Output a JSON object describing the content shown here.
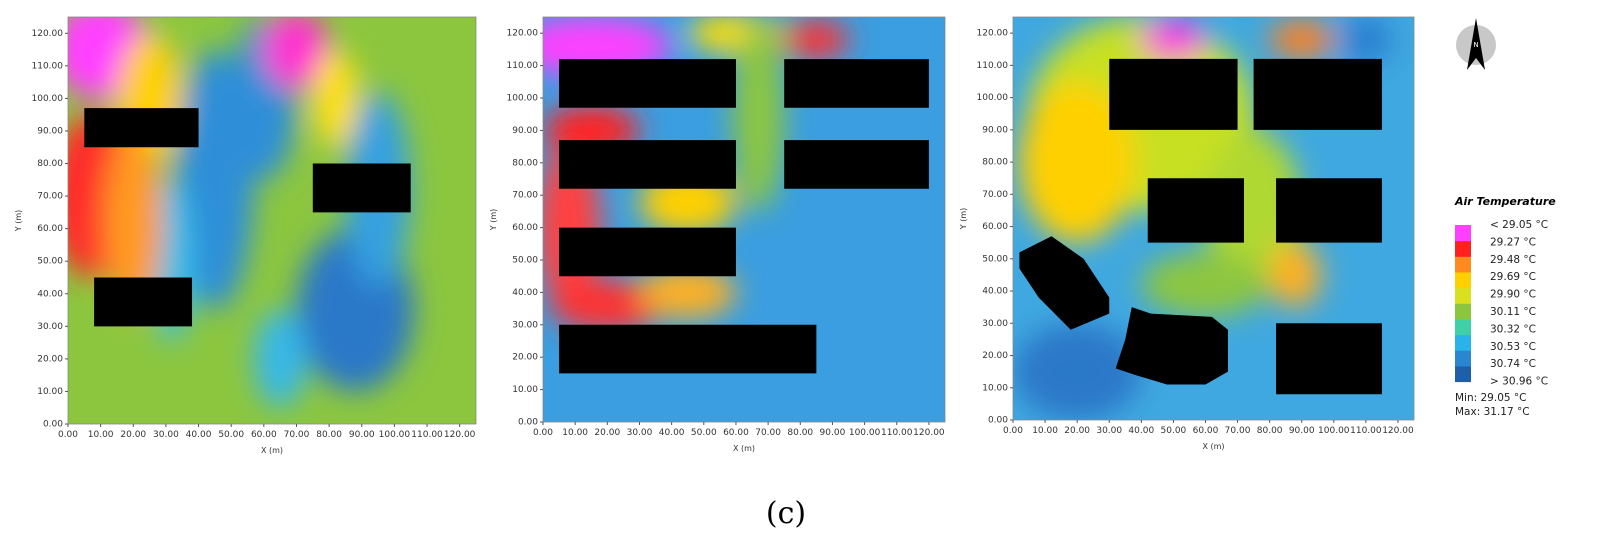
{
  "chart_data": [
    {
      "type": "heatmap",
      "x_label": "X (m)",
      "y_label": "Y (m)",
      "xlim": [
        0,
        125
      ],
      "ylim": [
        0,
        125
      ],
      "xticks": [
        {
          "value": 0,
          "label": "0.00"
        },
        {
          "value": 10,
          "label": "10.00"
        },
        {
          "value": 20,
          "label": "20.00"
        },
        {
          "value": 30,
          "label": "30.00"
        },
        {
          "value": 40,
          "label": "40.00"
        },
        {
          "value": 50,
          "label": "50.00"
        },
        {
          "value": 60,
          "label": "60.00"
        },
        {
          "value": 70,
          "label": "70.00"
        },
        {
          "value": 80,
          "label": "80.00"
        },
        {
          "value": 90,
          "label": "90.00"
        },
        {
          "value": 100,
          "label": "100.00"
        },
        {
          "value": 110,
          "label": "110.00"
        },
        {
          "value": 120,
          "label": "120.00"
        }
      ],
      "yticks": [
        {
          "value": 0,
          "label": "0.00"
        },
        {
          "value": 10,
          "label": "10.00"
        },
        {
          "value": 20,
          "label": "20.00"
        },
        {
          "value": 30,
          "label": "30.00"
        },
        {
          "value": 40,
          "label": "40.00"
        },
        {
          "value": 50,
          "label": "50.00"
        },
        {
          "value": 60,
          "label": "60.00"
        },
        {
          "value": 70,
          "label": "70.00"
        },
        {
          "value": 80,
          "label": "80.00"
        },
        {
          "value": 90,
          "label": "90.00"
        },
        {
          "value": 100,
          "label": "100.00"
        },
        {
          "value": 110,
          "label": "110.00"
        },
        {
          "value": 120,
          "label": "120.00"
        }
      ]
    },
    {
      "type": "heatmap",
      "x_label": "X (m)",
      "y_label": "Y (m)",
      "xlim": [
        0,
        125
      ],
      "ylim": [
        0,
        125
      ],
      "xticks": [
        {
          "value": 0,
          "label": "0.00"
        },
        {
          "value": 10,
          "label": "10.00"
        },
        {
          "value": 20,
          "label": "20.00"
        },
        {
          "value": 30,
          "label": "30.00"
        },
        {
          "value": 40,
          "label": "40.00"
        },
        {
          "value": 50,
          "label": "50.00"
        },
        {
          "value": 60,
          "label": "60.00"
        },
        {
          "value": 70,
          "label": "70.00"
        },
        {
          "value": 80,
          "label": "80.00"
        },
        {
          "value": 90,
          "label": "90.00"
        },
        {
          "value": 100,
          "label": "100.00"
        },
        {
          "value": 110,
          "label": "110.00"
        },
        {
          "value": 120,
          "label": "120.00"
        }
      ],
      "yticks": [
        {
          "value": 0,
          "label": "0.00"
        },
        {
          "value": 10,
          "label": "10.00"
        },
        {
          "value": 20,
          "label": "20.00"
        },
        {
          "value": 30,
          "label": "30.00"
        },
        {
          "value": 40,
          "label": "40.00"
        },
        {
          "value": 50,
          "label": "50.00"
        },
        {
          "value": 60,
          "label": "60.00"
        },
        {
          "value": 70,
          "label": "70.00"
        },
        {
          "value": 80,
          "label": "80.00"
        },
        {
          "value": 90,
          "label": "90.00"
        },
        {
          "value": 100,
          "label": "100.00"
        },
        {
          "value": 110,
          "label": "110.00"
        },
        {
          "value": 120,
          "label": "120.00"
        }
      ]
    },
    {
      "type": "heatmap",
      "x_label": "X (m)",
      "y_label": "Y (m)",
      "xlim": [
        0,
        125
      ],
      "ylim": [
        0,
        125
      ],
      "xticks": [
        {
          "value": 0,
          "label": "0.00"
        },
        {
          "value": 10,
          "label": "10.00"
        },
        {
          "value": 20,
          "label": "20.00"
        },
        {
          "value": 30,
          "label": "30.00"
        },
        {
          "value": 40,
          "label": "40.00"
        },
        {
          "value": 50,
          "label": "50.00"
        },
        {
          "value": 60,
          "label": "60.00"
        },
        {
          "value": 70,
          "label": "70.00"
        },
        {
          "value": 80,
          "label": "80.00"
        },
        {
          "value": 90,
          "label": "90.00"
        },
        {
          "value": 100,
          "label": "100.00"
        },
        {
          "value": 110,
          "label": "110.00"
        },
        {
          "value": 120,
          "label": "120.00"
        }
      ],
      "yticks": [
        {
          "value": 0,
          "label": "0.00"
        },
        {
          "value": 10,
          "label": "10.00"
        },
        {
          "value": 20,
          "label": "20.00"
        },
        {
          "value": 30,
          "label": "30.00"
        },
        {
          "value": 40,
          "label": "40.00"
        },
        {
          "value": 50,
          "label": "50.00"
        },
        {
          "value": 60,
          "label": "60.00"
        },
        {
          "value": 70,
          "label": "70.00"
        },
        {
          "value": 80,
          "label": "80.00"
        },
        {
          "value": 90,
          "label": "90.00"
        },
        {
          "value": 100,
          "label": "100.00"
        },
        {
          "value": 110,
          "label": "110.00"
        },
        {
          "value": 120,
          "label": "120.00"
        }
      ]
    }
  ],
  "legend": {
    "title": "Air Temperature",
    "labels": [
      "< 29.05 °C",
      "29.27 °C",
      "29.48 °C",
      "29.69 °C",
      "29.90 °C",
      "30.11 °C",
      "30.32 °C",
      "30.53 °C",
      "30.74 °C",
      "> 30.96 °C"
    ],
    "colors": [
      "#1f5fa8",
      "#2a86d0",
      "#2ab2ea",
      "#40d0a8",
      "#8cc63f",
      "#d8e020",
      "#ffd000",
      "#ff8a20",
      "#ff2020",
      "#ff40ff"
    ],
    "min": "Min: 29.05 °C",
    "max": "Max: 31.17 °C"
  },
  "north": "N",
  "caption": "(c)"
}
